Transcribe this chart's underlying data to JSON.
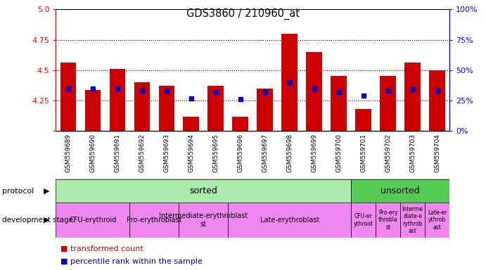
{
  "title": "GDS3860 / 210960_at",
  "samples": [
    "GSM559689",
    "GSM559690",
    "GSM559691",
    "GSM559692",
    "GSM559693",
    "GSM559694",
    "GSM559695",
    "GSM559696",
    "GSM559697",
    "GSM559698",
    "GSM559699",
    "GSM559700",
    "GSM559701",
    "GSM559702",
    "GSM559703",
    "GSM559704"
  ],
  "transformed_count": [
    4.56,
    4.335,
    4.51,
    4.4,
    4.37,
    4.12,
    4.37,
    4.12,
    4.35,
    4.8,
    4.65,
    4.45,
    4.18,
    4.45,
    4.56,
    4.5
  ],
  "percentile_rank": [
    35,
    35,
    35,
    33,
    33,
    27,
    32,
    26,
    32,
    40,
    35,
    32,
    29,
    33,
    34,
    33
  ],
  "ylim": [
    4.0,
    5.0
  ],
  "y2lim": [
    0,
    100
  ],
  "yticks": [
    4.0,
    4.25,
    4.5,
    4.75,
    5.0
  ],
  "y2ticks": [
    0,
    25,
    50,
    75,
    100
  ],
  "bar_color": "#cc0000",
  "percentile_color": "#0000cc",
  "protocol_sorted_color": "#aaeaaa",
  "protocol_unsorted_color": "#55cc55",
  "dev_stage_color": "#ee88ee",
  "protocol_sorted_count": 12,
  "protocol_unsorted_count": 4,
  "sorted_stages": [
    {
      "label": "CFU-erythroid",
      "start": 0,
      "end": 3
    },
    {
      "label": "Pro-erythroblast",
      "start": 3,
      "end": 5
    },
    {
      "label": "Intermediate-erythroblast\nst",
      "start": 5,
      "end": 7
    },
    {
      "label": "Late-erythroblast",
      "start": 7,
      "end": 12
    }
  ],
  "unsorted_stages": [
    {
      "label": "CFU-er\nythroid",
      "start": 12,
      "end": 13
    },
    {
      "label": "Pro-ery\nthrobla\nst",
      "start": 13,
      "end": 14
    },
    {
      "label": "Interme\ndiate-e\nrythrob\nast",
      "start": 14,
      "end": 15
    },
    {
      "label": "Late-er\nythrob\nast",
      "start": 15,
      "end": 16
    }
  ]
}
